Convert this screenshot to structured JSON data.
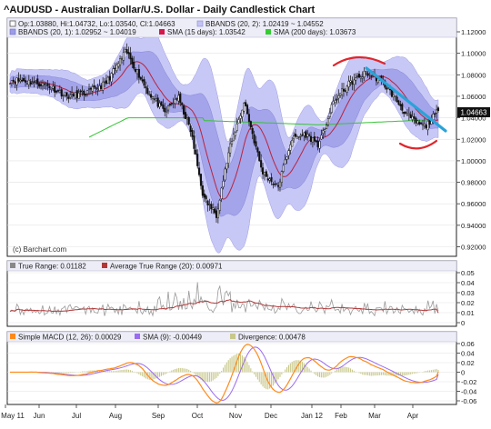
{
  "title": "^AUDUSD - Australian Dollar/U.S. Dollar - Daily Candlestick Chart",
  "main_legend": {
    "row1": [
      {
        "text": "Op:1.03880, Hi:1.04732, Lo:1.03540, Cl:1.04663",
        "icon": "candle-icon"
      },
      {
        "text": "BBANDS (20, 2): 1.02419 ~ 1.04552",
        "icon": "swatch-icon",
        "color": "#c3c3f4"
      }
    ],
    "row2": [
      {
        "text": "BBANDS (20, 1): 1.02952 ~ 1.04019",
        "icon": "swatch-icon",
        "color": "#9c9ce8"
      },
      {
        "text": "SMA (15 days): 1.03542",
        "icon": "swatch-icon",
        "color": "#d6184a"
      },
      {
        "text": "SMA (200 days): 1.03673",
        "icon": "swatch-icon",
        "color": "#33cc33"
      }
    ]
  },
  "price_axis": {
    "ticks": [
      "1.12000",
      "1.10000",
      "1.08000",
      "1.06000",
      "1.04000",
      "1.02000",
      "1.00000",
      "0.98000",
      "0.96000",
      "0.94000",
      "0.92000"
    ],
    "last_price": "1.04663"
  },
  "watermark": "(c) Barchart.com",
  "tr_panel": {
    "legend": [
      {
        "text": "True Range: 0.01182",
        "color": "#888888"
      },
      {
        "text": "Average True Range (20): 0.00971",
        "color": "#b03838"
      }
    ],
    "ticks": [
      "0.05",
      "0.04",
      "0.03",
      "0.02",
      "0.01",
      "0"
    ]
  },
  "macd_panel": {
    "legend": [
      {
        "text": "Simple MACD (12, 26): 0.00029",
        "color": "#ff8a1c"
      },
      {
        "text": "SMA (9): -0.00449",
        "color": "#9a6cf0"
      },
      {
        "text": "Divergence: 0.00478",
        "color": "#c8c88a"
      }
    ],
    "ticks": [
      "0.06",
      "0.04",
      "0.02",
      "0",
      "-0.02",
      "-0.04",
      "-0.06"
    ]
  },
  "x_axis": {
    "labels": [
      "May 11",
      "Jun",
      "Jul",
      "Aug",
      "Sep",
      "Oct",
      "Nov",
      "Dec",
      "Jan 12",
      "Feb",
      "Mar",
      "Apr"
    ]
  },
  "colors": {
    "band_outer": "#c8c8f6",
    "band_inner": "#a4a4ea",
    "sma15": "#b8243e",
    "sma200": "#36c436",
    "candle": "#111111",
    "trendline": "#2aa3d8",
    "arc_marker": "#e0262c",
    "true_range": "#9a9a9a",
    "atr": "#b03838",
    "macd": "#ff8a1c",
    "macd_signal": "#9a6cf0",
    "divergence": "#c8c88a"
  },
  "chart_data": [
    {
      "type": "candlestick",
      "title": "^AUDUSD - Australian Dollar/U.S. Dollar - Daily Candlestick Chart",
      "x_labels": [
        "May 11",
        "Jun",
        "Jul",
        "Aug",
        "Sep",
        "Oct",
        "Nov",
        "Dec",
        "Jan 12",
        "Feb",
        "Mar",
        "Apr"
      ],
      "ylim": [
        0.91,
        1.125
      ],
      "last_candle": {
        "open": 1.0388,
        "high": 1.04732,
        "low": 1.0354,
        "close": 1.04663
      },
      "close_path": {
        "x": [
          "May 11",
          "Jun",
          "Jun",
          "Jul",
          "Jul",
          "Aug",
          "Aug",
          "Sep",
          "Sep",
          "Sep",
          "Oct",
          "Oct",
          "Oct",
          "Nov",
          "Nov",
          "Dec",
          "Dec",
          "Dec",
          "Jan 12",
          "Jan 12",
          "Feb",
          "Feb",
          "Mar",
          "Mar",
          "Mar",
          "Apr",
          "Apr",
          "Apr"
        ],
        "close": [
          1.075,
          1.07,
          1.06,
          1.063,
          1.072,
          1.102,
          1.065,
          1.045,
          1.06,
          1.028,
          0.965,
          0.95,
          1.01,
          1.055,
          0.99,
          0.975,
          1.02,
          1.025,
          1.015,
          1.055,
          1.072,
          1.082,
          1.075,
          1.06,
          1.043,
          1.035,
          1.032,
          1.04663
        ]
      },
      "bollinger_20_2": {
        "lower": 1.02419,
        "upper": 1.04552
      },
      "bollinger_20_1": {
        "lower": 1.02952,
        "upper": 1.04019
      },
      "sma15": 1.03542,
      "sma200": 1.03673
    },
    {
      "type": "line",
      "title": "True Range",
      "ylim": [
        0,
        0.05
      ],
      "series": [
        {
          "name": "True Range",
          "last": 0.01182
        },
        {
          "name": "Average True Range (20)",
          "last": 0.00971
        }
      ]
    },
    {
      "type": "line",
      "title": "Simple MACD (12, 26)",
      "ylim": [
        -0.06,
        0.06
      ],
      "series": [
        {
          "name": "Simple MACD (12, 26)",
          "last": 0.00029
        },
        {
          "name": "SMA (9)",
          "last": -0.00449
        },
        {
          "name": "Divergence",
          "last": 0.00478
        }
      ]
    }
  ]
}
